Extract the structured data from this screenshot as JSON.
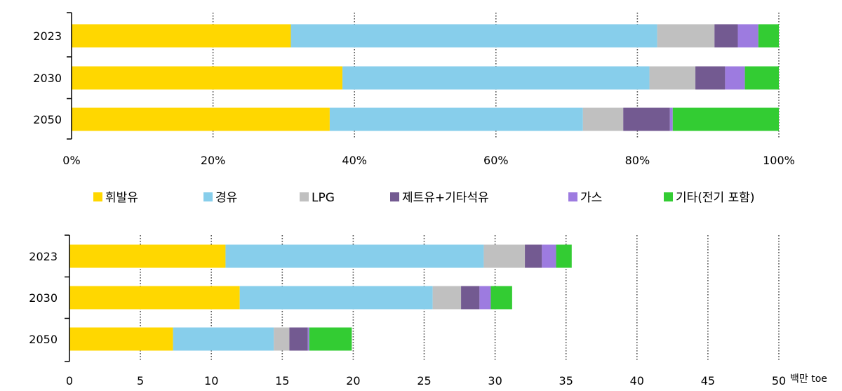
{
  "colors": {
    "gasoline": "#FFD700",
    "diesel": "#87CEEB",
    "lpg": "#C0C0C0",
    "jet": "#735A91",
    "gas": "#9D7BE0",
    "other": "#33CC33",
    "axis": "#000000",
    "grid": "#555555"
  },
  "legend": [
    {
      "label": "휘발유",
      "color_key": "gasoline"
    },
    {
      "label": "경유",
      "color_key": "diesel"
    },
    {
      "label": "LPG",
      "color_key": "lpg"
    },
    {
      "label": "제트유+기타석유",
      "color_key": "jet"
    },
    {
      "label": "가스",
      "color_key": "gas"
    },
    {
      "label": "기타(전기 포함)",
      "color_key": "other"
    }
  ],
  "chart_data": [
    {
      "type": "bar",
      "orientation": "horizontal",
      "stacked": "percent",
      "categories": [
        "2023",
        "2030",
        "2050"
      ],
      "series": [
        {
          "name": "휘발유",
          "color_key": "gasoline",
          "values": [
            31.0,
            38.3,
            36.5
          ]
        },
        {
          "name": "경유",
          "color_key": "diesel",
          "values": [
            51.8,
            43.4,
            35.8
          ]
        },
        {
          "name": "LPG",
          "color_key": "lpg",
          "values": [
            8.1,
            6.5,
            5.7
          ]
        },
        {
          "name": "제트유+기타석유",
          "color_key": "jet",
          "values": [
            3.3,
            4.2,
            6.6
          ]
        },
        {
          "name": "가스",
          "color_key": "gas",
          "values": [
            2.9,
            2.8,
            0.4
          ]
        },
        {
          "name": "기타(전기 포함)",
          "color_key": "other",
          "values": [
            2.9,
            4.8,
            15.0
          ]
        }
      ],
      "xlim": [
        0,
        100
      ],
      "xticks": [
        "0%",
        "20%",
        "40%",
        "60%",
        "80%",
        "100%"
      ],
      "xtick_values": [
        0,
        20,
        40,
        60,
        80,
        100
      ],
      "grid": "vertical-dotted"
    },
    {
      "type": "bar",
      "orientation": "horizontal",
      "stacked": "absolute",
      "categories": [
        "2023",
        "2030",
        "2050"
      ],
      "series": [
        {
          "name": "휘발유",
          "color_key": "gasoline",
          "values": [
            11.0,
            12.0,
            7.3
          ]
        },
        {
          "name": "경유",
          "color_key": "diesel",
          "values": [
            18.2,
            13.6,
            7.1
          ]
        },
        {
          "name": "LPG",
          "color_key": "lpg",
          "values": [
            2.9,
            2.0,
            1.1
          ]
        },
        {
          "name": "제트유+기타석유",
          "color_key": "jet",
          "values": [
            1.2,
            1.3,
            1.3
          ]
        },
        {
          "name": "가스",
          "color_key": "gas",
          "values": [
            1.0,
            0.8,
            0.1
          ]
        },
        {
          "name": "기타(전기 포함)",
          "color_key": "other",
          "values": [
            1.1,
            1.5,
            3.0
          ]
        }
      ],
      "xlim": [
        0,
        50
      ],
      "xticks": [
        "0",
        "5",
        "10",
        "15",
        "20",
        "25",
        "30",
        "35",
        "40",
        "45",
        "50"
      ],
      "xtick_values": [
        0,
        5,
        10,
        15,
        20,
        25,
        30,
        35,
        40,
        45,
        50
      ],
      "unit": "백만 toe",
      "grid": "vertical-dotted"
    }
  ]
}
